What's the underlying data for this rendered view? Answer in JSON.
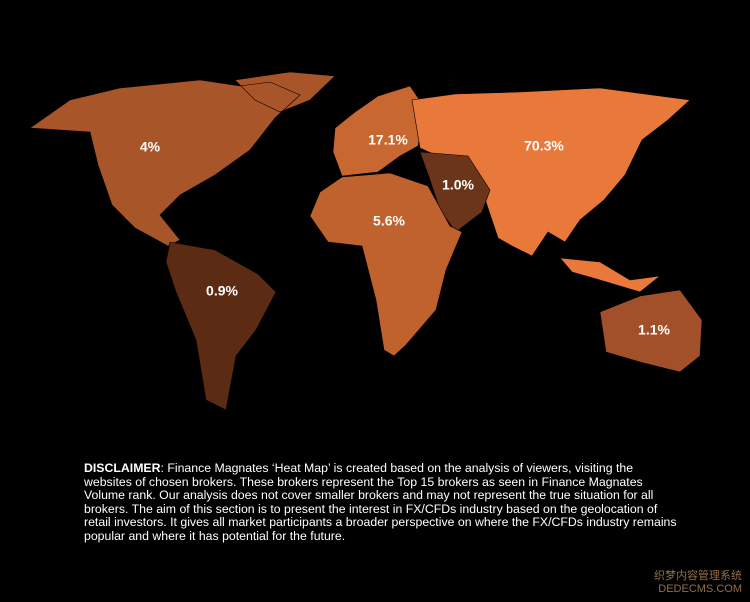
{
  "chart_data": {
    "type": "map",
    "values": [
      4,
      17.1,
      70.3,
      1.0,
      5.6,
      0.9,
      1.1
    ],
    "value_labels": [
      "4%",
      "17.1%",
      "70.3%",
      "1.0%",
      "5.6%",
      "0.9%",
      "1.1%"
    ],
    "colors": [
      "#a9552a",
      "#c8672f",
      "#e8793a",
      "#6b3519",
      "#c0622e",
      "#5c2b13",
      "#a2502a"
    ]
  },
  "disclaimer": {
    "heading": "DISCLAIMER",
    "text": ": Finance Magnates ‘Heat Map’ is created based on the analysis of viewers, visiting the websites of chosen brokers. These brokers represent the Top 15 brokers as seen in Finance Magnates Volume rank. Our analysis does not cover smaller brokers and may not represent the true situation for all brokers. The aim of this section is to present the interest in FX/CFDs industry based on the geolocation of retail investors. It gives all market participants a broader perspective on where the FX/CFDs industry remains popular and where it has potential for the future."
  },
  "watermark": {
    "line1": "织梦内容管理系统",
    "line2": "DEDECMS.COM"
  }
}
